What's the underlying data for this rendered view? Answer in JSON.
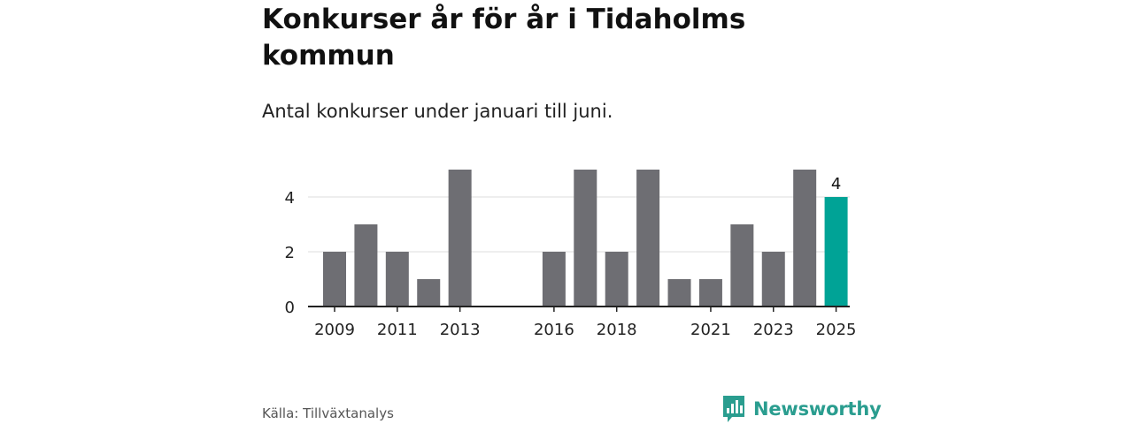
{
  "title": "Konkurser år för år i Tidaholms kommun",
  "subtitle": "Antal konkurser under januari till juni.",
  "source": "Källa: Tillväxtanalys",
  "brand": {
    "name": "Newsworthy",
    "logo_icon": "bar-chart-speech-bubble-icon",
    "color": "#2a9d8f"
  },
  "chart_data": {
    "type": "bar",
    "title": "Konkurser år för år i Tidaholms kommun",
    "subtitle": "Antal konkurser under januari till juni.",
    "xlabel": "",
    "ylabel": "",
    "categories": [
      2009,
      2010,
      2011,
      2012,
      2013,
      2014,
      2015,
      2016,
      2017,
      2018,
      2019,
      2020,
      2021,
      2022,
      2023,
      2024,
      2025
    ],
    "values": [
      2,
      3,
      2,
      1,
      5,
      null,
      null,
      2,
      5,
      2,
      5,
      1,
      1,
      3,
      2,
      5,
      4
    ],
    "x_tick_labels": [
      "2009",
      "2011",
      "2013",
      "2016",
      "2018",
      "2021",
      "2023",
      "2025"
    ],
    "y_ticks": [
      0,
      2,
      4
    ],
    "ylim": [
      0,
      5
    ],
    "grid": true,
    "legend": "none",
    "highlight": {
      "category": 2025,
      "label": "4"
    },
    "colors": {
      "bar": "#6e6e73",
      "highlight": "#00a396",
      "grid": "#dddddd",
      "axis": "#222222"
    }
  }
}
